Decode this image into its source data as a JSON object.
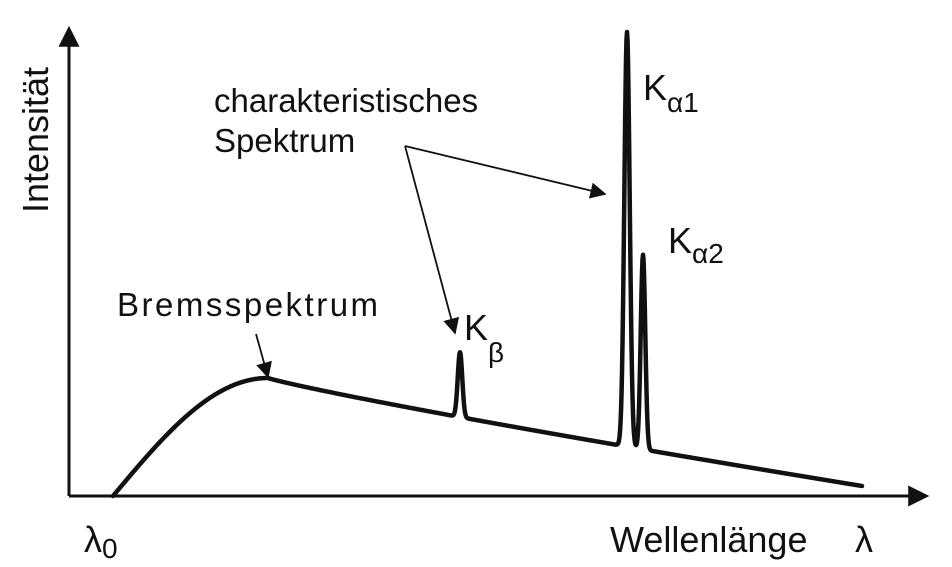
{
  "chart_data": {
    "type": "line",
    "ylabel": "Intensität",
    "xlabel": "Wellenlänge",
    "x_symbol": "λ",
    "x_min_label": "λ",
    "x_min_label_sub": "0",
    "grid": false,
    "colors": {
      "line": "#111111",
      "axis": "#111111"
    },
    "annotations": {
      "characteristic": [
        "charakteristisches",
        "Spektrum"
      ],
      "bremsstrahlung": "Bremsspektrum"
    },
    "peaks": [
      {
        "name": "k-beta",
        "label": "K",
        "sub": "β",
        "x": 460,
        "height": 0.31
      },
      {
        "name": "k-alpha1",
        "label": "K",
        "sub": "α1",
        "x": 627,
        "height": 1.0
      },
      {
        "name": "k-alpha2",
        "label": "K",
        "sub": "α2",
        "x": 643,
        "height": 0.52
      }
    ]
  }
}
